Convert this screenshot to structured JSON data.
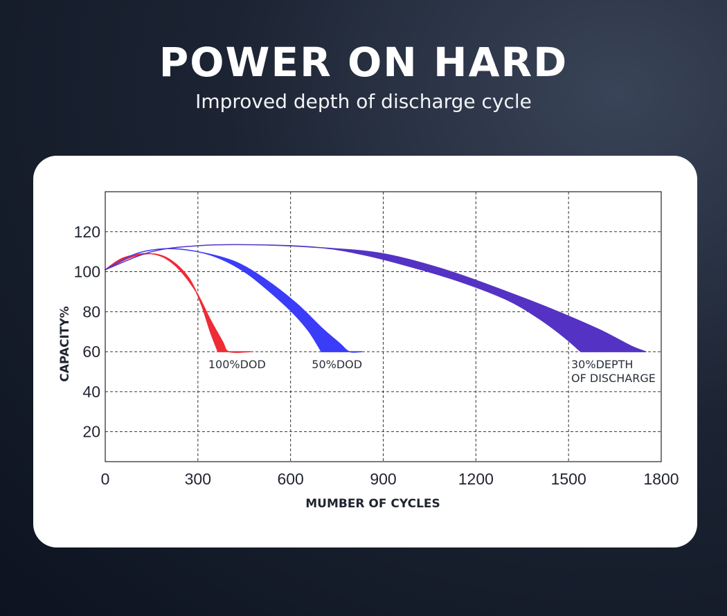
{
  "header": {
    "title": "POWER ON HARD",
    "subtitle": "Improved depth of discharge cycle"
  },
  "chart_data": {
    "type": "area",
    "xlabel": "MUMBER OF CYCLES",
    "ylabel": "CAPACITY%",
    "xlim": [
      0,
      1800
    ],
    "ylim": [
      5,
      140
    ],
    "x_ticks": [
      0,
      300,
      600,
      900,
      1200,
      1500,
      1800
    ],
    "y_ticks": [
      20,
      40,
      60,
      80,
      100,
      120
    ],
    "grid": true,
    "series": [
      {
        "name": "100%DOD",
        "color": "#ee2c36",
        "upper": [
          [
            0,
            101
          ],
          [
            60,
            107
          ],
          [
            150,
            109
          ],
          [
            220,
            104
          ],
          [
            290,
            91
          ],
          [
            340,
            76
          ],
          [
            380,
            65
          ],
          [
            400,
            60
          ],
          [
            470,
            60
          ]
        ],
        "lower": [
          [
            0,
            101
          ],
          [
            80,
            107
          ],
          [
            150,
            109
          ],
          [
            210,
            106
          ],
          [
            270,
            97
          ],
          [
            310,
            84
          ],
          [
            340,
            70
          ],
          [
            365,
            60
          ]
        ]
      },
      {
        "name": "50%DOD",
        "color": "#3a3cf7",
        "upper": [
          [
            0,
            101
          ],
          [
            100,
            109
          ],
          [
            200,
            111.5
          ],
          [
            300,
            110
          ],
          [
            420,
            105
          ],
          [
            520,
            96
          ],
          [
            620,
            84
          ],
          [
            700,
            72
          ],
          [
            760,
            64
          ],
          [
            790,
            60
          ],
          [
            830,
            60
          ]
        ],
        "lower": [
          [
            0,
            101
          ],
          [
            100,
            109
          ],
          [
            200,
            111.5
          ],
          [
            300,
            110
          ],
          [
            380,
            106
          ],
          [
            460,
            99
          ],
          [
            540,
            89
          ],
          [
            610,
            79
          ],
          [
            660,
            70
          ],
          [
            700,
            60
          ]
        ]
      },
      {
        "name": "30%DEPTH OF DISCHARGE",
        "color": "#5433c4",
        "upper": [
          [
            0,
            101
          ],
          [
            150,
            110
          ],
          [
            300,
            113
          ],
          [
            480,
            113.5
          ],
          [
            700,
            112
          ],
          [
            900,
            109
          ],
          [
            1100,
            101
          ],
          [
            1300,
            90
          ],
          [
            1450,
            81
          ],
          [
            1600,
            71
          ],
          [
            1700,
            63
          ],
          [
            1750,
            60
          ]
        ],
        "lower": [
          [
            0,
            101
          ],
          [
            150,
            110
          ],
          [
            300,
            113
          ],
          [
            480,
            113.5
          ],
          [
            700,
            112
          ],
          [
            850,
            108
          ],
          [
            1000,
            102
          ],
          [
            1150,
            95
          ],
          [
            1300,
            86
          ],
          [
            1400,
            77
          ],
          [
            1480,
            68
          ],
          [
            1540,
            60
          ]
        ]
      }
    ],
    "annotations": [
      {
        "series": "100%DOD",
        "lines": [
          "100%DOD"
        ]
      },
      {
        "series": "50%DOD",
        "lines": [
          "50%DOD"
        ]
      },
      {
        "series": "30%DEPTH OF DISCHARGE",
        "lines": [
          "30%DEPTH",
          "OF DISCHARGE"
        ]
      }
    ]
  }
}
